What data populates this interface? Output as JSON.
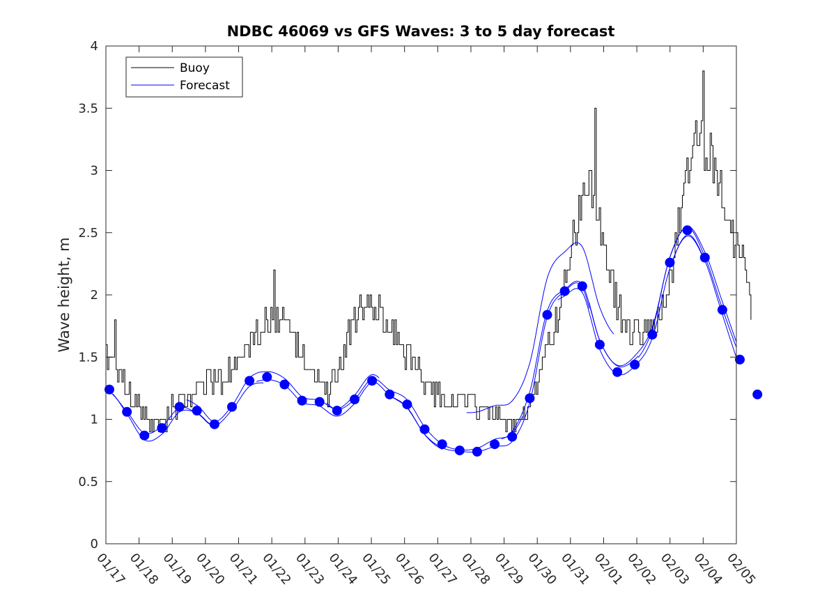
{
  "chart_data": {
    "type": "line",
    "title": "NDBC 46069 vs GFS Waves: 3 to 5 day forecast",
    "xlabel": "",
    "ylabel": "Wave height, m",
    "ylim": [
      0,
      4
    ],
    "yticks": [
      "0",
      "0.5",
      "1",
      "1.5",
      "2",
      "2.5",
      "3",
      "3.5",
      "4"
    ],
    "xlim": [
      0,
      18
    ],
    "xticks": [
      "01/17",
      "01/18",
      "01/19",
      "01/20",
      "01/21",
      "01/22",
      "01/23",
      "01/24",
      "01/25",
      "01/26",
      "01/27",
      "01/28",
      "01/29",
      "01/30",
      "01/31",
      "02/01",
      "02/02",
      "02/03",
      "02/04",
      "02/05"
    ],
    "legend": [
      "Buoy",
      "Forecast"
    ],
    "legend_position": "top-left",
    "colors": {
      "buoy": "#000000",
      "forecast": "#0000ff"
    },
    "buoy_anchors": [
      [
        0.0,
        1.55
      ],
      [
        0.2,
        1.45
      ],
      [
        0.45,
        1.3
      ],
      [
        0.75,
        1.15
      ],
      [
        1.0,
        1.05
      ],
      [
        1.25,
        0.95
      ],
      [
        1.55,
        0.97
      ],
      [
        1.8,
        1.05
      ],
      [
        2.1,
        1.15
      ],
      [
        2.4,
        1.15
      ],
      [
        2.7,
        1.3
      ],
      [
        3.0,
        1.28
      ],
      [
        3.4,
        1.35
      ],
      [
        3.8,
        1.5
      ],
      [
        4.0,
        1.6
      ],
      [
        4.4,
        1.75
      ],
      [
        4.75,
        1.8
      ],
      [
        5.1,
        1.75
      ],
      [
        5.4,
        1.6
      ],
      [
        5.75,
        1.45
      ],
      [
        6.0,
        1.3
      ],
      [
        6.3,
        1.2
      ],
      [
        6.6,
        1.35
      ],
      [
        6.85,
        1.6
      ],
      [
        7.1,
        1.8
      ],
      [
        7.4,
        1.9
      ],
      [
        7.75,
        1.85
      ],
      [
        8.1,
        1.75
      ],
      [
        8.4,
        1.6
      ],
      [
        8.8,
        1.45
      ],
      [
        9.1,
        1.3
      ],
      [
        9.5,
        1.2
      ],
      [
        10.0,
        1.15
      ],
      [
        10.4,
        1.12
      ],
      [
        10.8,
        1.1
      ],
      [
        11.2,
        1.0
      ],
      [
        11.6,
        0.95
      ],
      [
        12.0,
        1.05
      ],
      [
        12.3,
        1.3
      ],
      [
        12.6,
        1.55
      ],
      [
        12.9,
        1.85
      ],
      [
        13.1,
        2.15
      ],
      [
        13.35,
        2.5
      ],
      [
        13.6,
        2.8
      ],
      [
        13.85,
        2.95
      ],
      [
        14.05,
        2.65
      ],
      [
        14.3,
        2.3
      ],
      [
        14.6,
        1.9
      ],
      [
        14.9,
        1.75
      ],
      [
        15.2,
        1.7
      ],
      [
        15.5,
        1.75
      ],
      [
        15.75,
        1.8
      ],
      [
        16.0,
        2.0
      ],
      [
        16.3,
        2.5
      ],
      [
        16.6,
        3.0
      ],
      [
        16.85,
        3.3
      ],
      [
        17.1,
        3.15
      ],
      [
        17.35,
        3.05
      ],
      [
        17.6,
        2.8
      ],
      [
        17.85,
        2.5
      ],
      [
        18.1,
        2.3
      ],
      [
        18.35,
        2.05
      ],
      [
        18.45,
        1.8
      ]
    ],
    "buoy_peaks": [
      [
        0.26,
        1.8
      ],
      [
        1.98,
        1.0
      ],
      [
        4.8,
        2.2
      ],
      [
        7.25,
        2.0
      ],
      [
        13.95,
        3.5
      ],
      [
        17.05,
        3.8
      ]
    ],
    "forecast_markers": {
      "x": [
        0.1,
        0.6,
        1.1,
        1.6,
        2.1,
        2.6,
        3.1,
        3.6,
        4.1,
        4.6,
        5.1,
        5.6,
        6.1,
        6.6,
        7.1,
        7.6,
        8.1,
        8.6,
        9.1,
        9.6,
        10.1,
        10.6,
        11.1,
        11.6,
        12.1,
        12.6,
        13.1,
        13.6,
        14.1,
        14.6,
        15.1,
        15.6,
        16.1,
        16.6,
        17.1,
        17.6,
        18.1,
        18.6
      ],
      "y": [
        1.24,
        1.06,
        0.87,
        0.93,
        1.1,
        1.07,
        0.96,
        1.1,
        1.31,
        1.34,
        1.28,
        1.15,
        1.14,
        1.07,
        1.16,
        1.31,
        1.2,
        1.12,
        0.92,
        0.8,
        0.75,
        0.74,
        0.8,
        0.86,
        1.17,
        1.84,
        2.03,
        2.07,
        1.6,
        1.38,
        1.44,
        1.68,
        2.26,
        2.52,
        2.3,
        1.88,
        1.48,
        1.2
      ]
    },
    "forecast_segments": [
      {
        "x0": 0.0,
        "x1": 3.0,
        "dy": 0.0
      },
      {
        "x0": 0.2,
        "x1": 4.5,
        "dy": -0.03
      },
      {
        "x0": 2.3,
        "x1": 7.8,
        "dy": 0.03
      },
      {
        "x0": 4.3,
        "x1": 9.6,
        "dy": -0.025
      },
      {
        "x0": 6.3,
        "x1": 11.9,
        "dy": 0.02
      },
      {
        "x0": 8.2,
        "x1": 13.8,
        "dy": -0.02
      },
      {
        "x0": 10.3,
        "x1": 14.5,
        "dy": 0.3
      },
      {
        "x0": 11.3,
        "x1": 15.2,
        "dy": 0.03
      },
      {
        "x0": 12.9,
        "x1": 17.1,
        "dy": -0.03
      },
      {
        "x0": 13.8,
        "x1": 19.0,
        "dy": 0.05
      },
      {
        "x0": 15.2,
        "x1": 19.0,
        "dy": 0.025
      },
      {
        "x0": 16.2,
        "x1": 19.0,
        "dy": -0.045
      }
    ]
  }
}
